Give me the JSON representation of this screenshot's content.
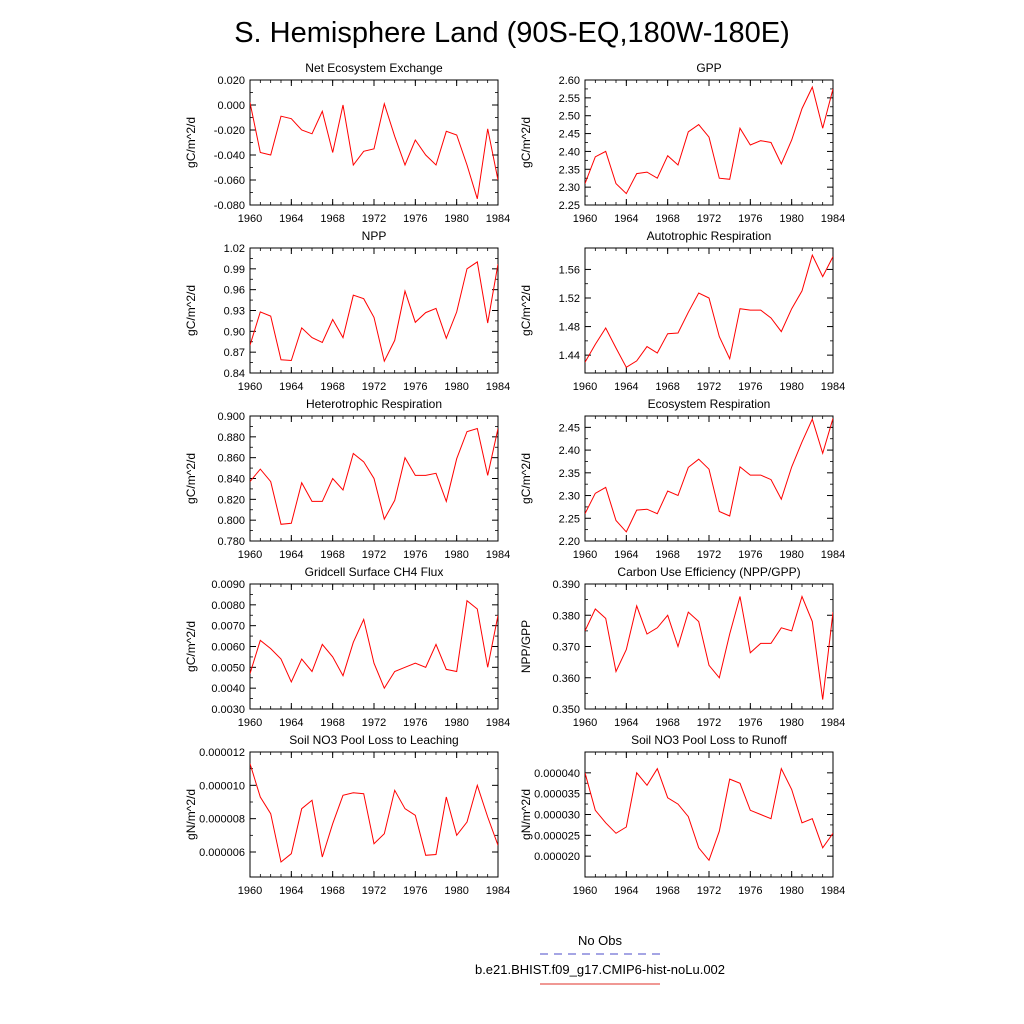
{
  "page": {
    "title": "S. Hemisphere Land (90S-EQ,180W-180E)",
    "legend": [
      {
        "label": "No Obs",
        "color": "#4b4bc8",
        "dashed": true
      },
      {
        "label": "b.e21.BHIST.f09_g17.CMIP6-hist-noLu.002",
        "color": "#e0302a",
        "dashed": false
      }
    ]
  },
  "chart_data": [
    {
      "type": "line",
      "title": "Net Ecosystem Exchange",
      "ylabel": "gC/m^2/d",
      "xlabel": "",
      "x": [
        1960,
        1961,
        1962,
        1963,
        1964,
        1965,
        1966,
        1967,
        1968,
        1969,
        1970,
        1971,
        1972,
        1973,
        1974,
        1975,
        1976,
        1977,
        1978,
        1979,
        1980,
        1981,
        1982,
        1983,
        1984
      ],
      "series": [
        {
          "values": [
            0.002,
            -0.038,
            -0.04,
            -0.009,
            -0.011,
            -0.02,
            -0.023,
            -0.005,
            -0.038,
            0.0,
            -0.048,
            -0.037,
            -0.035,
            0.001,
            -0.025,
            -0.048,
            -0.028,
            -0.04,
            -0.048,
            -0.021,
            -0.024,
            -0.048,
            -0.075,
            -0.019,
            -0.06
          ],
          "color": "#ff0000"
        }
      ],
      "xlim": [
        1960,
        1984
      ],
      "ylim": [
        -0.08,
        0.02
      ],
      "xticks": [
        "1960",
        "1964",
        "1968",
        "1972",
        "1976",
        "1980",
        "1984"
      ],
      "yticks": [
        "-0.080",
        "-0.060",
        "-0.040",
        "-0.020",
        "0.000",
        "0.020"
      ]
    },
    {
      "type": "line",
      "title": "GPP",
      "ylabel": "gC/m^2/d",
      "xlabel": "",
      "x": [
        1960,
        1961,
        1962,
        1963,
        1964,
        1965,
        1966,
        1967,
        1968,
        1969,
        1970,
        1971,
        1972,
        1973,
        1974,
        1975,
        1976,
        1977,
        1978,
        1979,
        1980,
        1981,
        1982,
        1983,
        1984
      ],
      "series": [
        {
          "values": [
            2.31,
            2.385,
            2.4,
            2.31,
            2.282,
            2.338,
            2.342,
            2.325,
            2.388,
            2.362,
            2.455,
            2.475,
            2.44,
            2.325,
            2.322,
            2.465,
            2.418,
            2.43,
            2.425,
            2.365,
            2.432,
            2.52,
            2.58,
            2.465,
            2.575
          ],
          "color": "#ff0000"
        }
      ],
      "xlim": [
        1960,
        1984
      ],
      "ylim": [
        2.25,
        2.6
      ],
      "xticks": [
        "1960",
        "1964",
        "1968",
        "1972",
        "1976",
        "1980",
        "1984"
      ],
      "yticks": [
        "2.25",
        "2.30",
        "2.35",
        "2.40",
        "2.45",
        "2.50",
        "2.55",
        "2.60"
      ]
    },
    {
      "type": "line",
      "title": "NPP",
      "ylabel": "gC/m^2/d",
      "xlabel": "",
      "x": [
        1960,
        1961,
        1962,
        1963,
        1964,
        1965,
        1966,
        1967,
        1968,
        1969,
        1970,
        1971,
        1972,
        1973,
        1974,
        1975,
        1976,
        1977,
        1978,
        1979,
        1980,
        1981,
        1982,
        1983,
        1984
      ],
      "series": [
        {
          "values": [
            0.88,
            0.928,
            0.922,
            0.859,
            0.858,
            0.905,
            0.891,
            0.884,
            0.917,
            0.891,
            0.952,
            0.947,
            0.92,
            0.857,
            0.887,
            0.958,
            0.913,
            0.927,
            0.933,
            0.89,
            0.928,
            0.99,
            1.0,
            0.912,
            0.997
          ],
          "color": "#ff0000"
        }
      ],
      "xlim": [
        1960,
        1984
      ],
      "ylim": [
        0.84,
        1.02
      ],
      "xticks": [
        "1960",
        "1964",
        "1968",
        "1972",
        "1976",
        "1980",
        "1984"
      ],
      "yticks": [
        "0.84",
        "0.87",
        "0.90",
        "0.93",
        "0.96",
        "0.99",
        "1.02"
      ]
    },
    {
      "type": "line",
      "title": "Autotrophic Respiration",
      "ylabel": "gC/m^2/d",
      "xlabel": "",
      "x": [
        1960,
        1961,
        1962,
        1963,
        1964,
        1965,
        1966,
        1967,
        1968,
        1969,
        1970,
        1971,
        1972,
        1973,
        1974,
        1975,
        1976,
        1977,
        1978,
        1979,
        1980,
        1981,
        1982,
        1983,
        1984
      ],
      "series": [
        {
          "values": [
            1.43,
            1.455,
            1.478,
            1.45,
            1.423,
            1.432,
            1.452,
            1.443,
            1.47,
            1.471,
            1.5,
            1.527,
            1.52,
            1.466,
            1.435,
            1.505,
            1.503,
            1.503,
            1.492,
            1.473,
            1.505,
            1.53,
            1.58,
            1.55,
            1.578
          ],
          "color": "#ff0000"
        }
      ],
      "xlim": [
        1960,
        1984
      ],
      "ylim": [
        1.415,
        1.59
      ],
      "xticks": [
        "1960",
        "1964",
        "1968",
        "1972",
        "1976",
        "1980",
        "1984"
      ],
      "yticks": [
        "1.44",
        "1.48",
        "1.52",
        "1.56"
      ]
    },
    {
      "type": "line",
      "title": "Heterotrophic Respiration",
      "ylabel": "gC/m^2/d",
      "xlabel": "",
      "x": [
        1960,
        1961,
        1962,
        1963,
        1964,
        1965,
        1966,
        1967,
        1968,
        1969,
        1970,
        1971,
        1972,
        1973,
        1974,
        1975,
        1976,
        1977,
        1978,
        1979,
        1980,
        1981,
        1982,
        1983,
        1984
      ],
      "series": [
        {
          "values": [
            0.837,
            0.849,
            0.837,
            0.796,
            0.797,
            0.836,
            0.818,
            0.818,
            0.84,
            0.829,
            0.864,
            0.856,
            0.84,
            0.801,
            0.819,
            0.86,
            0.843,
            0.843,
            0.845,
            0.818,
            0.859,
            0.885,
            0.888,
            0.843,
            0.888
          ],
          "color": "#ff0000"
        }
      ],
      "xlim": [
        1960,
        1984
      ],
      "ylim": [
        0.78,
        0.9
      ],
      "xticks": [
        "1960",
        "1964",
        "1968",
        "1972",
        "1976",
        "1980",
        "1984"
      ],
      "yticks": [
        "0.780",
        "0.800",
        "0.820",
        "0.840",
        "0.860",
        "0.880",
        "0.900"
      ]
    },
    {
      "type": "line",
      "title": "Ecosystem Respiration",
      "ylabel": "gC/m^2/d",
      "xlabel": "",
      "x": [
        1960,
        1961,
        1962,
        1963,
        1964,
        1965,
        1966,
        1967,
        1968,
        1969,
        1970,
        1971,
        1972,
        1973,
        1974,
        1975,
        1976,
        1977,
        1978,
        1979,
        1980,
        1981,
        1982,
        1983,
        1984
      ],
      "series": [
        {
          "values": [
            2.26,
            2.305,
            2.318,
            2.245,
            2.22,
            2.268,
            2.27,
            2.26,
            2.31,
            2.3,
            2.362,
            2.38,
            2.358,
            2.265,
            2.255,
            2.363,
            2.345,
            2.345,
            2.335,
            2.292,
            2.363,
            2.418,
            2.468,
            2.393,
            2.47
          ],
          "color": "#ff0000"
        }
      ],
      "xlim": [
        1960,
        1984
      ],
      "ylim": [
        2.2,
        2.475
      ],
      "xticks": [
        "1960",
        "1964",
        "1968",
        "1972",
        "1976",
        "1980",
        "1984"
      ],
      "yticks": [
        "2.20",
        "2.25",
        "2.30",
        "2.35",
        "2.40",
        "2.45"
      ]
    },
    {
      "type": "line",
      "title": "Gridcell Surface CH4 Flux",
      "ylabel": "gC/m^2/d",
      "xlabel": "",
      "x": [
        1960,
        1961,
        1962,
        1963,
        1964,
        1965,
        1966,
        1967,
        1968,
        1969,
        1970,
        1971,
        1972,
        1973,
        1974,
        1975,
        1976,
        1977,
        1978,
        1979,
        1980,
        1981,
        1982,
        1983,
        1984
      ],
      "series": [
        {
          "values": [
            0.0047,
            0.0063,
            0.0059,
            0.0054,
            0.0043,
            0.0054,
            0.0048,
            0.0061,
            0.0055,
            0.0046,
            0.0062,
            0.0073,
            0.0052,
            0.004,
            0.0048,
            0.005,
            0.0052,
            0.005,
            0.0061,
            0.0049,
            0.0048,
            0.0082,
            0.0078,
            0.005,
            0.0075
          ],
          "color": "#ff0000"
        }
      ],
      "xlim": [
        1960,
        1984
      ],
      "ylim": [
        0.003,
        0.009
      ],
      "xticks": [
        "1960",
        "1964",
        "1968",
        "1972",
        "1976",
        "1980",
        "1984"
      ],
      "yticks": [
        "0.0030",
        "0.0040",
        "0.0050",
        "0.0060",
        "0.0070",
        "0.0080",
        "0.0090"
      ]
    },
    {
      "type": "line",
      "title": "Carbon Use Efficiency (NPP/GPP)",
      "ylabel": "NPP/GPP",
      "xlabel": "",
      "x": [
        1960,
        1961,
        1962,
        1963,
        1964,
        1965,
        1966,
        1967,
        1968,
        1969,
        1970,
        1971,
        1972,
        1973,
        1974,
        1975,
        1976,
        1977,
        1978,
        1979,
        1980,
        1981,
        1982,
        1983,
        1984
      ],
      "series": [
        {
          "values": [
            0.375,
            0.382,
            0.379,
            0.362,
            0.369,
            0.383,
            0.374,
            0.376,
            0.38,
            0.37,
            0.381,
            0.378,
            0.364,
            0.36,
            0.374,
            0.386,
            0.368,
            0.371,
            0.371,
            0.376,
            0.375,
            0.386,
            0.378,
            0.353,
            0.381
          ],
          "color": "#ff0000"
        }
      ],
      "xlim": [
        1960,
        1984
      ],
      "ylim": [
        0.35,
        0.39
      ],
      "xticks": [
        "1960",
        "1964",
        "1968",
        "1972",
        "1976",
        "1980",
        "1984"
      ],
      "yticks": [
        "0.350",
        "0.360",
        "0.370",
        "0.380",
        "0.390"
      ]
    },
    {
      "type": "line",
      "title": "Soil NO3 Pool Loss to Leaching",
      "ylabel": "gN/m^2/d",
      "xlabel": "",
      "x": [
        1960,
        1961,
        1962,
        1963,
        1964,
        1965,
        1966,
        1967,
        1968,
        1969,
        1970,
        1971,
        1972,
        1973,
        1974,
        1975,
        1976,
        1977,
        1978,
        1979,
        1980,
        1981,
        1982,
        1983,
        1984
      ],
      "series": [
        {
          "values": [
            1.13e-05,
            9.3e-06,
            8.3e-06,
            5.4e-06,
            5.9e-06,
            8.6e-06,
            9.1e-06,
            5.7e-06,
            7.7e-06,
            9.4e-06,
            9.55e-06,
            9.5e-06,
            6.5e-06,
            7.1e-06,
            9.7e-06,
            8.6e-06,
            8.2e-06,
            5.8e-06,
            5.85e-06,
            9.3e-06,
            7e-06,
            7.8e-06,
            1e-05,
            8.1e-06,
            6.4e-06
          ],
          "color": "#ff0000"
        }
      ],
      "xlim": [
        1960,
        1984
      ],
      "ylim": [
        4.5e-06,
        1.2e-05
      ],
      "xticks": [
        "1960",
        "1964",
        "1968",
        "1972",
        "1976",
        "1980",
        "1984"
      ],
      "yticks": [
        "0.000006",
        "0.000008",
        "0.000010",
        "0.000012"
      ]
    },
    {
      "type": "line",
      "title": "Soil NO3 Pool Loss to Runoff",
      "ylabel": "gN/m^2/d",
      "xlabel": "",
      "x": [
        1960,
        1961,
        1962,
        1963,
        1964,
        1965,
        1966,
        1967,
        1968,
        1969,
        1970,
        1971,
        1972,
        1973,
        1974,
        1975,
        1976,
        1977,
        1978,
        1979,
        1980,
        1981,
        1982,
        1983,
        1984
      ],
      "series": [
        {
          "values": [
            4e-05,
            3.1e-05,
            2.8e-05,
            2.55e-05,
            2.7e-05,
            4e-05,
            3.7e-05,
            4.1e-05,
            3.4e-05,
            3.25e-05,
            2.95e-05,
            2.2e-05,
            1.9e-05,
            2.6e-05,
            3.85e-05,
            3.75e-05,
            3.1e-05,
            3e-05,
            2.9e-05,
            4.1e-05,
            3.6e-05,
            2.8e-05,
            2.9e-05,
            2.2e-05,
            2.55e-05
          ],
          "color": "#ff0000"
        }
      ],
      "xlim": [
        1960,
        1984
      ],
      "ylim": [
        1.5e-05,
        4.5e-05
      ],
      "xticks": [
        "1960",
        "1964",
        "1968",
        "1972",
        "1976",
        "1980",
        "1984"
      ],
      "yticks": [
        "0.000020",
        "0.000025",
        "0.000030",
        "0.000035",
        "0.000040"
      ]
    }
  ]
}
